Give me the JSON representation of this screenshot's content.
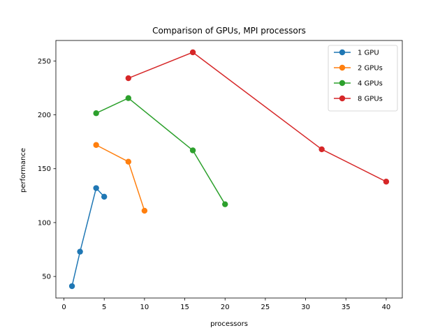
{
  "chart_data": {
    "type": "line",
    "title": "Comparison of GPUs, MPI processors",
    "xlabel": "processors",
    "ylabel": "performance",
    "xlim": [
      -1,
      42
    ],
    "ylim": [
      30,
      269
    ],
    "xticks": [
      0,
      5,
      10,
      15,
      20,
      25,
      30,
      35,
      40
    ],
    "yticks": [
      50,
      100,
      150,
      200,
      250
    ],
    "grid": false,
    "legend_position": "top-right",
    "markers": "circle",
    "series": [
      {
        "name": "1 GPU",
        "color": "#1f77b4",
        "x": [
          1,
          2,
          4,
          5
        ],
        "y": [
          41,
          73,
          132,
          124
        ]
      },
      {
        "name": "2 GPUs",
        "color": "#ff7f0e",
        "x": [
          4,
          8,
          10
        ],
        "y": [
          172,
          156.5,
          111
        ]
      },
      {
        "name": "4 GPUs",
        "color": "#2ca02c",
        "x": [
          4,
          8,
          16,
          20
        ],
        "y": [
          201.5,
          215.5,
          167,
          117
        ]
      },
      {
        "name": "8 GPUs",
        "color": "#d62728",
        "x": [
          8,
          16,
          32,
          40
        ],
        "y": [
          234,
          258,
          168,
          138
        ]
      }
    ]
  }
}
